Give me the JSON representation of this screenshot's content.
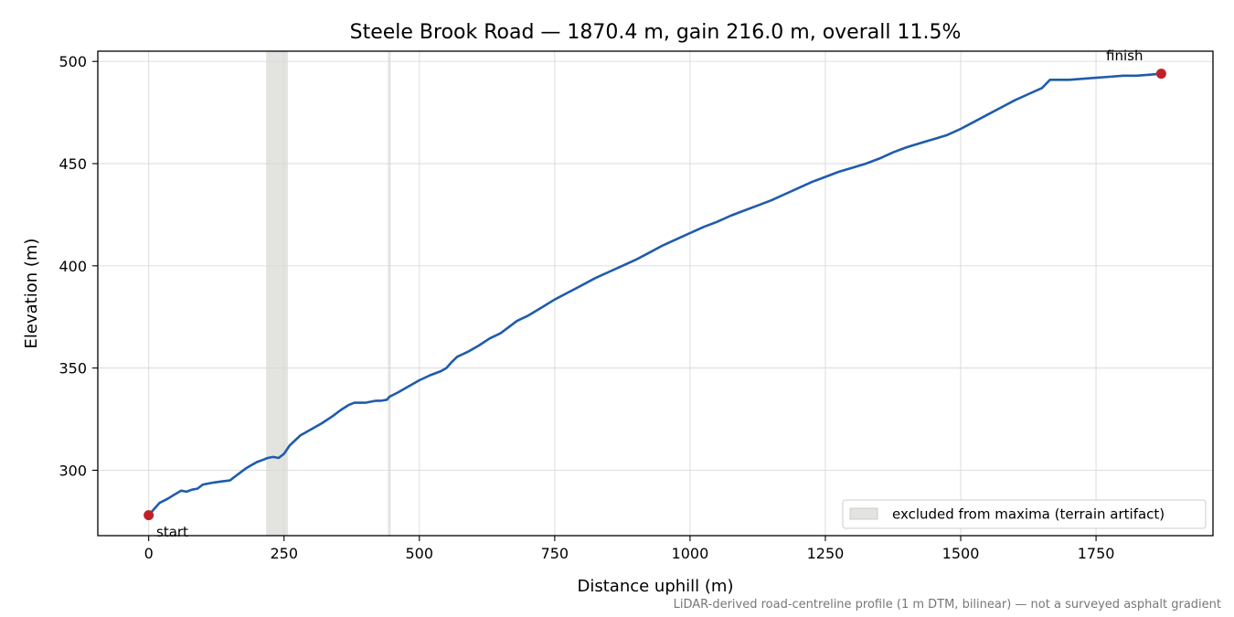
{
  "chart_data": {
    "type": "line",
    "title": "Steele Brook Road — 1870.4 m, gain 216.0 m, overall 11.5%",
    "xlabel": "Distance uphill (m)",
    "ylabel": "Elevation (m)",
    "xlim": [
      -94,
      1966
    ],
    "ylim": [
      268,
      505
    ],
    "x_ticks": [
      0,
      250,
      500,
      750,
      1000,
      1250,
      1500,
      1750
    ],
    "y_ticks": [
      300,
      350,
      400,
      450,
      500
    ],
    "x_tick_labels": [
      "0",
      "250",
      "500",
      "750",
      "1000",
      "1250",
      "1500",
      "1750"
    ],
    "y_tick_labels": [
      "300",
      "350",
      "400",
      "450",
      "500"
    ],
    "grid": true,
    "legend": {
      "position": "lower-right",
      "entries": [
        "excluded from maxima (terrain artifact)"
      ]
    },
    "excluded_ranges": [
      [
        217,
        257
      ],
      [
        442,
        447
      ]
    ],
    "series": [
      {
        "name": "",
        "color": "#1f5bad",
        "points": [
          [
            0,
            278
          ],
          [
            10,
            281
          ],
          [
            20,
            284
          ],
          [
            35,
            286
          ],
          [
            50,
            288.5
          ],
          [
            60,
            290
          ],
          [
            70,
            289.5
          ],
          [
            80,
            290.5
          ],
          [
            90,
            291
          ],
          [
            100,
            293
          ],
          [
            110,
            293.5
          ],
          [
            120,
            294
          ],
          [
            135,
            294.5
          ],
          [
            150,
            295
          ],
          [
            160,
            297
          ],
          [
            170,
            299
          ],
          [
            180,
            301
          ],
          [
            190,
            302.5
          ],
          [
            200,
            304
          ],
          [
            210,
            305
          ],
          [
            220,
            306
          ],
          [
            230,
            306.5
          ],
          [
            240,
            306
          ],
          [
            250,
            308
          ],
          [
            260,
            312
          ],
          [
            270,
            314.5
          ],
          [
            280,
            317
          ],
          [
            300,
            320
          ],
          [
            320,
            323
          ],
          [
            340,
            326.5
          ],
          [
            355,
            329.5
          ],
          [
            370,
            332
          ],
          [
            380,
            333
          ],
          [
            390,
            333
          ],
          [
            400,
            333
          ],
          [
            410,
            333.5
          ],
          [
            420,
            334
          ],
          [
            430,
            334
          ],
          [
            440,
            334.5
          ],
          [
            445,
            336
          ],
          [
            460,
            338
          ],
          [
            480,
            341
          ],
          [
            500,
            344
          ],
          [
            520,
            346.5
          ],
          [
            540,
            348.5
          ],
          [
            550,
            350
          ],
          [
            560,
            353
          ],
          [
            570,
            355.5
          ],
          [
            590,
            358
          ],
          [
            610,
            361
          ],
          [
            630,
            364.5
          ],
          [
            650,
            367
          ],
          [
            670,
            371
          ],
          [
            680,
            373
          ],
          [
            700,
            375.5
          ],
          [
            725,
            379.5
          ],
          [
            750,
            383.5
          ],
          [
            775,
            387
          ],
          [
            800,
            390.5
          ],
          [
            825,
            394
          ],
          [
            850,
            397
          ],
          [
            875,
            400
          ],
          [
            900,
            403
          ],
          [
            925,
            406.5
          ],
          [
            950,
            410
          ],
          [
            975,
            413
          ],
          [
            1000,
            416
          ],
          [
            1025,
            419
          ],
          [
            1050,
            421.5
          ],
          [
            1075,
            424.5
          ],
          [
            1100,
            427
          ],
          [
            1125,
            429.5
          ],
          [
            1150,
            432
          ],
          [
            1175,
            435
          ],
          [
            1200,
            438
          ],
          [
            1225,
            441
          ],
          [
            1250,
            443.5
          ],
          [
            1275,
            446
          ],
          [
            1300,
            448
          ],
          [
            1325,
            450
          ],
          [
            1350,
            452.5
          ],
          [
            1375,
            455.5
          ],
          [
            1400,
            458
          ],
          [
            1425,
            460
          ],
          [
            1450,
            462
          ],
          [
            1475,
            464
          ],
          [
            1500,
            467
          ],
          [
            1525,
            470.5
          ],
          [
            1550,
            474
          ],
          [
            1575,
            477.5
          ],
          [
            1600,
            481
          ],
          [
            1625,
            484
          ],
          [
            1650,
            487
          ],
          [
            1665,
            491
          ],
          [
            1700,
            491
          ],
          [
            1725,
            491.5
          ],
          [
            1750,
            492
          ],
          [
            1775,
            492.5
          ],
          [
            1800,
            493
          ],
          [
            1825,
            493
          ],
          [
            1850,
            493.5
          ],
          [
            1870.4,
            494
          ]
        ]
      }
    ],
    "markers": [
      {
        "x": 0,
        "y": 278,
        "label": "start",
        "color": "#c0202a"
      },
      {
        "x": 1870.4,
        "y": 494,
        "label": "finish",
        "color": "#c0202a"
      }
    ],
    "footnote": "LiDAR-derived road-centreline profile (1 m DTM, bilinear) — not a surveyed asphalt gradient"
  }
}
